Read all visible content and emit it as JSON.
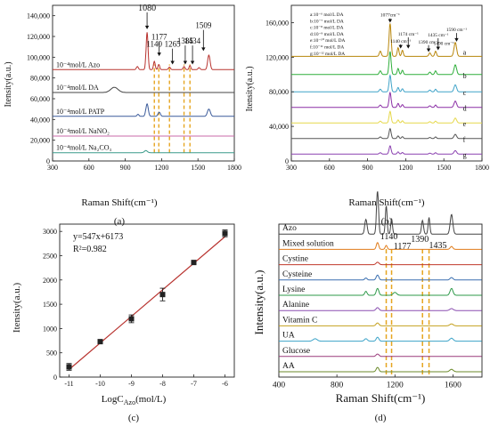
{
  "figure": {
    "panel_labels": [
      "(a)",
      "(b)",
      "(c)",
      "(d)"
    ]
  },
  "chart_data": [
    {
      "panel": "(a)",
      "type": "line",
      "xlabel": "Raman Shift(cm⁻¹)",
      "ylabel": "Itensity(a.u.)",
      "xlim": [
        300,
        1800
      ],
      "ylim": [
        0,
        150000
      ],
      "x_ticks": [
        300,
        600,
        900,
        1200,
        1500,
        1800
      ],
      "y_ticks": [
        0,
        20000,
        40000,
        60000,
        80000,
        100000,
        120000,
        140000
      ],
      "y_tick_labels": [
        "0",
        "20,000",
        "40,000",
        "60,000",
        "80,000",
        "100,000",
        "120,000",
        "140,000"
      ],
      "series": [
        {
          "name": "10⁻⁴mol/L Azo",
          "baseline": 88000,
          "color": "#b8332f",
          "peaks": [
            [
              1000,
              3000,
              8
            ],
            [
              1080,
              36000,
              8
            ],
            [
              1140,
              8000,
              7
            ],
            [
              1177,
              5000,
              7
            ],
            [
              1265,
              2500,
              8
            ],
            [
              1385,
              3000,
              8
            ],
            [
              1434,
              4000,
              7
            ],
            [
              1509,
              2000,
              8
            ],
            [
              1590,
              14000,
              10
            ]
          ]
        },
        {
          "name": "10⁻⁴mol/L DA",
          "baseline": 66000,
          "color": "#444444",
          "peaks": [
            [
              810,
              5000,
              30
            ]
          ]
        },
        {
          "name": "10⁻⁴mol/L PATP",
          "baseline": 43000,
          "color": "#3a5a9a",
          "peaks": [
            [
              1005,
              2000,
              8
            ],
            [
              1080,
              12000,
              10
            ],
            [
              1180,
              4000,
              10
            ],
            [
              1590,
              7000,
              12
            ]
          ]
        },
        {
          "name": "10⁻⁴mol/L NaNO₂",
          "baseline": 24000,
          "color": "#c86aa8",
          "peaks": []
        },
        {
          "name": "10⁻⁴mol/L Na₂CO₃",
          "baseline": 8000,
          "color": "#3a9a8a",
          "peaks": [
            [
              1070,
              2000,
              12
            ]
          ]
        }
      ],
      "peak_labels": [
        {
          "text": "1080",
          "x": 1080,
          "y": 145000,
          "arrow_to": 127000
        },
        {
          "text": "1140",
          "x": 1140,
          "y": 110000,
          "arrow_to": null
        },
        {
          "text": "1177",
          "x": 1180,
          "y": 117000,
          "arrow_to": 101000
        },
        {
          "text": "1265",
          "x": 1290,
          "y": 110000,
          "arrow_to": 93000
        },
        {
          "text": "1385",
          "x": 1395,
          "y": 113000,
          "arrow_to": 93000
        },
        {
          "text": "1434",
          "x": 1455,
          "y": 113000,
          "arrow_to": 93000
        },
        {
          "text": "1509",
          "x": 1545,
          "y": 128000,
          "arrow_to": 106000
        }
      ],
      "dashed_lines_x": [
        1140,
        1177,
        1265,
        1385,
        1434
      ],
      "dashed_color": "#e6a520"
    },
    {
      "panel": "(b)",
      "type": "line",
      "xlabel": "Raman Shift(cm⁻¹)",
      "ylabel": "Itensity(a.u.)",
      "xlim": [
        300,
        1800
      ],
      "ylim": [
        0,
        180000
      ],
      "x_ticks": [
        300,
        600,
        900,
        1200,
        1500,
        1800
      ],
      "y_ticks": [
        0,
        40000,
        80000,
        120000,
        160000
      ],
      "y_tick_labels": [
        "0",
        "40,000",
        "80,000",
        "120,000",
        "160,000"
      ],
      "legend": [
        "a:10⁻⁶ mol/L DA",
        "b:10⁻⁷ mol/L DA",
        "c:10⁻⁸ mol/L DA",
        "d:10⁻⁹ mol/L DA",
        "e:10⁻¹⁰ mol/L DA",
        "f:10⁻¹¹ mol/L DA",
        "g:10⁻¹² mol/L DA"
      ],
      "series": [
        {
          "name": "a",
          "baseline": 121000,
          "color": "#b8860b",
          "scale": 1.0
        },
        {
          "name": "b",
          "baseline": 100000,
          "color": "#2eae3a",
          "scale": 0.7
        },
        {
          "name": "c",
          "baseline": 80000,
          "color": "#3fa3c8",
          "scale": 0.5
        },
        {
          "name": "d",
          "baseline": 62000,
          "color": "#8b2fa6",
          "scale": 0.45
        },
        {
          "name": "e",
          "baseline": 44000,
          "color": "#e6d84a",
          "scale": 0.35
        },
        {
          "name": "f",
          "baseline": 26000,
          "color": "#555555",
          "scale": 0.3
        },
        {
          "name": "g",
          "baseline": 8000,
          "color": "#8a40b0",
          "scale": 0.25
        }
      ],
      "peak_shape": [
        [
          1000,
          6000,
          8
        ],
        [
          1077,
          38000,
          8
        ],
        [
          1140,
          10000,
          7
        ],
        [
          1174,
          7000,
          7
        ],
        [
          1390,
          4000,
          8
        ],
        [
          1435,
          6000,
          7
        ],
        [
          1590,
          16000,
          10
        ]
      ],
      "series_labels": [
        "a",
        "b",
        "c",
        "d",
        "e",
        "f",
        "g"
      ],
      "peak_labels": [
        {
          "text": "1077cm⁻¹",
          "x": 1077,
          "y": 167000,
          "arrow_to": 160000
        },
        {
          "text": "1174 cm⁻¹",
          "x": 1220,
          "y": 145000,
          "arrow_to": 130000
        },
        {
          "text": "1140 cm⁻¹",
          "x": 1160,
          "y": 137000,
          "arrow_to": 130000
        },
        {
          "text": "1435 cm⁻¹",
          "x": 1455,
          "y": 144000,
          "arrow_to": 128000
        },
        {
          "text": "1390 cm⁻¹",
          "x": 1380,
          "y": 136000,
          "arrow_to": 126000
        },
        {
          "text": "1590 cm⁻¹",
          "x": 1600,
          "y": 150000,
          "arrow_to": 138000
        },
        {
          "text": "1490 cm⁻¹",
          "x": 1500,
          "y": 134000,
          "arrow_to": null
        }
      ]
    },
    {
      "panel": "(c)",
      "type": "scatter",
      "xlabel": "LogC",
      "xlabel_sub": "Azo",
      "xlabel_tail": "(mol/L)",
      "ylabel": "Itensity(a.u.)",
      "xlim": [
        -11.3,
        -5.7
      ],
      "ylim": [
        0,
        3150
      ],
      "x_ticks": [
        -11,
        -10,
        -9,
        -8,
        -7,
        -6
      ],
      "y_ticks": [
        0,
        500,
        1000,
        1500,
        2000,
        2500,
        3000
      ],
      "x": [
        -11,
        -10,
        -9,
        -8,
        -7,
        -6
      ],
      "y": [
        210,
        730,
        1200,
        1700,
        2360,
        2960
      ],
      "yerr": [
        70,
        30,
        80,
        130,
        30,
        70
      ],
      "fit": {
        "slope": 547,
        "intercept": 6173
      },
      "equation": "y=547x+6173",
      "r2": "R²=0.982",
      "line_color": "#b8332f"
    },
    {
      "panel": "(d)",
      "type": "line",
      "xlabel": "Raman Shift(cm⁻¹)",
      "ylabel": "Intensity(a.u.)",
      "xlim": [
        400,
        1800
      ],
      "x_ticks": [
        400,
        800,
        1200,
        1600
      ],
      "series": [
        {
          "name": "Azo",
          "color": "#444444",
          "peaks": [
            [
              1000,
              30,
              8
            ],
            [
              1080,
              88,
              7
            ],
            [
              1140,
              58,
              6
            ],
            [
              1177,
              32,
              6
            ],
            [
              1390,
              28,
              7
            ],
            [
              1435,
              34,
              6
            ],
            [
              1590,
              40,
              9
            ]
          ]
        },
        {
          "name": "Mixed solution",
          "color": "#e07b1a",
          "peaks": [
            [
              1080,
              14,
              8
            ],
            [
              1140,
              8,
              7
            ],
            [
              1590,
              6,
              9
            ]
          ]
        },
        {
          "name": "Cystine",
          "color": "#c0392b",
          "peaks": [
            [
              1080,
              5,
              10
            ]
          ]
        },
        {
          "name": "Cysteine",
          "color": "#3a6fb0",
          "peaks": [
            [
              1000,
              4,
              8
            ],
            [
              1080,
              10,
              9
            ],
            [
              1590,
              5,
              10
            ]
          ]
        },
        {
          "name": "Lysine",
          "color": "#2e9a4a",
          "peaks": [
            [
              1000,
              8,
              8
            ],
            [
              1080,
              14,
              9
            ],
            [
              1200,
              6,
              12
            ],
            [
              1590,
              14,
              10
            ]
          ]
        },
        {
          "name": "Alanine",
          "color": "#8a4fb0",
          "peaks": [
            [
              1080,
              6,
              10
            ],
            [
              1590,
              4,
              12
            ]
          ]
        },
        {
          "name": "Vitamin C",
          "color": "#c4a01e",
          "peaks": [
            [
              1080,
              6,
              10
            ],
            [
              1590,
              4,
              12
            ]
          ]
        },
        {
          "name": "UA",
          "color": "#3ba3c8",
          "peaks": [
            [
              650,
              5,
              14
            ],
            [
              1000,
              5,
              10
            ],
            [
              1080,
              8,
              9
            ],
            [
              1590,
              6,
              12
            ]
          ]
        },
        {
          "name": "Glucose",
          "color": "#9a3a7a",
          "peaks": [
            [
              1080,
              5,
              10
            ]
          ]
        },
        {
          "name": "AA",
          "color": "#6b8a2a",
          "peaks": [
            [
              1080,
              9,
              9
            ],
            [
              1590,
              5,
              12
            ]
          ]
        }
      ],
      "peak_labels": [
        {
          "text": "1140",
          "x": 1140
        },
        {
          "text": "1177",
          "x": 1177
        },
        {
          "text": "1390",
          "x": 1390
        },
        {
          "text": "1435",
          "x": 1435
        }
      ],
      "dashed_lines_x": [
        1140,
        1177,
        1390,
        1435
      ],
      "dashed_color": "#e6a520"
    }
  ]
}
